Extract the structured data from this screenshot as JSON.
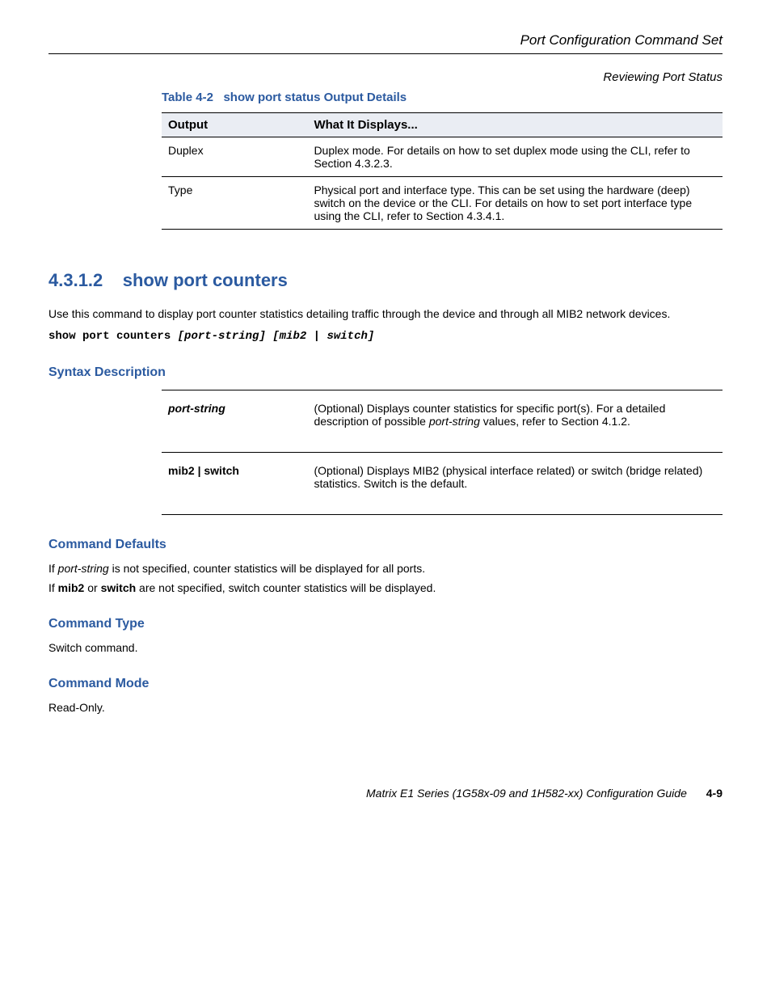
{
  "header": {
    "title": "Port Configuration Command Set",
    "subtitle": "Reviewing Port Status"
  },
  "table": {
    "caption_label": "Table 4-2",
    "caption_title": "show port status Output Details",
    "header_output": "Output",
    "header_desc": "What It Displays...",
    "rows": [
      {
        "output": "Duplex",
        "desc": "Duplex mode. For details on how to set duplex mode using the CLI, refer to Section 4.3.2.3."
      },
      {
        "output": "Type",
        "desc": "Physical port and interface type. This can be set using the hardware (deep) switch on the device or the CLI. For details on how to set port interface type using the CLI, refer to Section 4.3.4.1."
      }
    ]
  },
  "section": {
    "number": "4.3.1.2",
    "title": "show port counters",
    "intro": "Use this command to display port counter statistics detailing traffic through the device and through all MIB2 network devices.",
    "syntax_prefix": "show port counters",
    "syntax_params": "[port-string] [mib2 | switch]"
  },
  "syntax_desc": {
    "heading": "Syntax Description",
    "row1_name": "port-string",
    "row1_desc_prefix": "(Optional) Displays counter statistics for specific port(s). For a detailed description of possible ",
    "row1_desc_italic": "port-string",
    "row1_desc_suffix": " values, refer to Section 4.1.2.",
    "row2_name": "mib2 | switch",
    "row2_desc": "(Optional) Displays MIB2 (physical interface related) or switch (bridge related) statistics. Switch is the default."
  },
  "command_defaults": {
    "heading": "Command Defaults",
    "line1_prefix": "If ",
    "line1_italic": "port-string",
    "line1_suffix": " is not specified, counter statistics will be displayed for all ports.",
    "line2_prefix": "If ",
    "line2_bold": "mib2",
    "line2_mid": " or ",
    "line2_bold2": "switch",
    "line2_suffix": " are not specified, switch counter statistics will be displayed."
  },
  "command_type": {
    "heading": "Command Type",
    "text": "Switch command."
  },
  "command_mode": {
    "heading": "Command Mode",
    "text": "Read-Only."
  },
  "footer": {
    "title": "Matrix E1 Series (1G58x-09 and 1H582-xx) Configuration Guide",
    "page": "4-9"
  }
}
